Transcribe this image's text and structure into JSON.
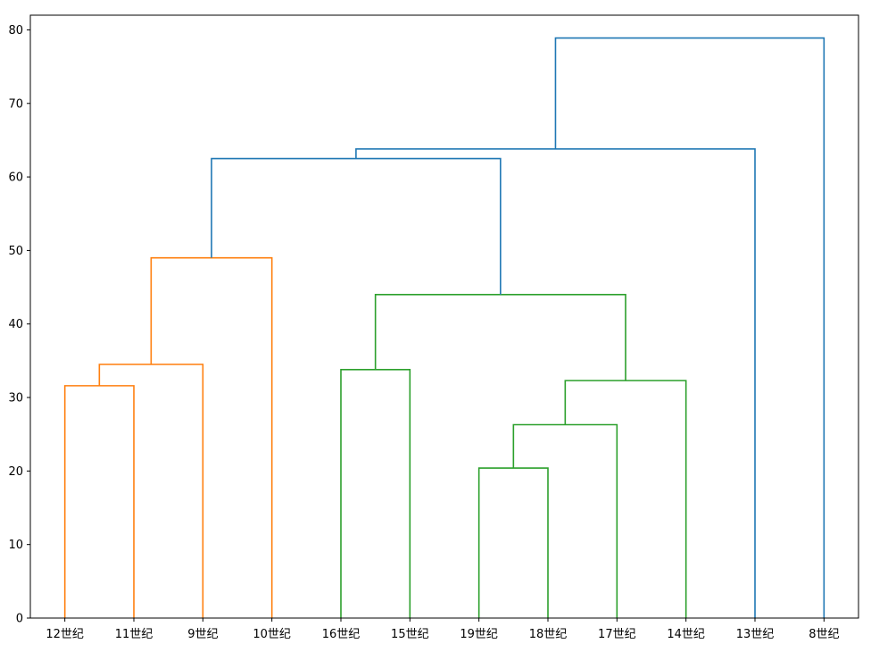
{
  "chart_data": {
    "type": "dendrogram",
    "title": "",
    "xlabel": "",
    "ylabel": "",
    "ylim": [
      0,
      82
    ],
    "yticks": [
      0,
      10,
      20,
      30,
      40,
      50,
      60,
      70,
      80
    ],
    "grid": false,
    "leaves": [
      "12世纪",
      "11世纪",
      "9世纪",
      "10世纪",
      "16世纪",
      "15世纪",
      "19世纪",
      "18世纪",
      "17世纪",
      "14世纪",
      "13世纪",
      "8世纪"
    ],
    "colors": {
      "orange": "#ff7f0e",
      "green": "#2ca02c",
      "blue": "#1f77b4"
    },
    "links": [
      {
        "left": "12世纪",
        "right": "11世纪",
        "height": 31.6,
        "id": "a",
        "color": "orange"
      },
      {
        "left": "a",
        "right": "9世纪",
        "height": 34.5,
        "id": "b",
        "color": "orange"
      },
      {
        "left": "b",
        "right": "10世纪",
        "height": 49.0,
        "id": "c",
        "color": "orange"
      },
      {
        "left": "16世纪",
        "right": "15世纪",
        "height": 33.8,
        "id": "d",
        "color": "green"
      },
      {
        "left": "19世纪",
        "right": "18世纪",
        "height": 20.4,
        "id": "e",
        "color": "green"
      },
      {
        "left": "e",
        "right": "17世纪",
        "height": 26.3,
        "id": "f",
        "color": "green"
      },
      {
        "left": "f",
        "right": "14世纪",
        "height": 32.3,
        "id": "g",
        "color": "green"
      },
      {
        "left": "d",
        "right": "g",
        "height": 44.0,
        "id": "h",
        "color": "green"
      },
      {
        "left": "c",
        "right": "h",
        "height": 62.5,
        "id": "i",
        "color": "blue"
      },
      {
        "left": "i",
        "right": "13世纪",
        "height": 63.8,
        "id": "j",
        "color": "blue"
      },
      {
        "left": "j",
        "right": "8世纪",
        "height": 78.9,
        "id": "k",
        "color": "blue"
      }
    ]
  }
}
